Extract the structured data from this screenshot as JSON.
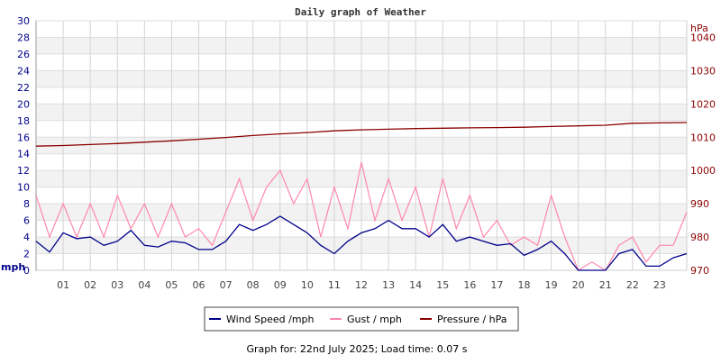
{
  "chart_data": {
    "type": "line",
    "title": "Daily graph of Weather",
    "x_ticks": [
      "01",
      "02",
      "03",
      "04",
      "05",
      "06",
      "07",
      "08",
      "09",
      "10",
      "11",
      "12",
      "13",
      "14",
      "15",
      "16",
      "17",
      "18",
      "19",
      "20",
      "21",
      "22",
      "23"
    ],
    "xlim_hours": [
      0,
      24
    ],
    "left_axis": {
      "label": "mph",
      "ylim": [
        0,
        30
      ],
      "ticks": [
        0,
        2,
        4,
        6,
        8,
        10,
        12,
        14,
        16,
        18,
        20,
        22,
        24,
        26,
        28,
        30
      ],
      "color": "#00008b"
    },
    "right_axis": {
      "label": "hPa",
      "ylim": [
        970,
        1045
      ],
      "ticks": [
        970,
        980,
        990,
        1000,
        1010,
        1020,
        1030,
        1040
      ],
      "color": "#8b0000"
    },
    "grid": true,
    "legend_position": "bottom",
    "series": [
      {
        "name": "Wind Speed /mph",
        "axis": "left",
        "color": "#00008b",
        "x_hours_step": 0.5,
        "values": [
          3.5,
          2.2,
          4.5,
          3.8,
          4,
          3,
          3.5,
          4.8,
          3,
          2.8,
          3.5,
          3.3,
          2.5,
          2.5,
          3.5,
          5.5,
          4.8,
          5.5,
          6.5,
          5.5,
          4.5,
          3,
          2,
          3.5,
          4.5,
          5,
          6,
          5,
          5,
          4,
          5.5,
          3.5,
          4,
          3.5,
          3,
          3.2,
          1.8,
          2.5,
          3.5,
          2,
          0,
          0,
          0,
          2,
          2.5,
          0.5,
          0.5,
          1.5,
          2
        ]
      },
      {
        "name": "Gust / mph",
        "axis": "left",
        "color": "#ff88aa",
        "x_hours_step": 0.5,
        "values": [
          9,
          4,
          8,
          4,
          8,
          4,
          9,
          5,
          8,
          4,
          8,
          4,
          5,
          3,
          7,
          11,
          6,
          10,
          12,
          8,
          11,
          4,
          10,
          5,
          13,
          6,
          11,
          6,
          10,
          4,
          11,
          5,
          9,
          4,
          6,
          3,
          4,
          3,
          9,
          4,
          0,
          1,
          0,
          3,
          4,
          1,
          3,
          3,
          7
        ]
      },
      {
        "name": "Pressure / hPa",
        "axis": "right",
        "color": "#8b0000",
        "x_hours_step": 1,
        "values": [
          1007.3,
          1007.5,
          1007.8,
          1008.1,
          1008.5,
          1008.9,
          1009.4,
          1009.9,
          1010.5,
          1011,
          1011.4,
          1011.9,
          1012.2,
          1012.4,
          1012.6,
          1012.7,
          1012.8,
          1012.9,
          1013,
          1013.2,
          1013.4,
          1013.6,
          1014.2,
          1014.3,
          1014.4
        ]
      }
    ]
  },
  "footer": "Graph for: 22nd July 2025; Load time: 0.07 s"
}
